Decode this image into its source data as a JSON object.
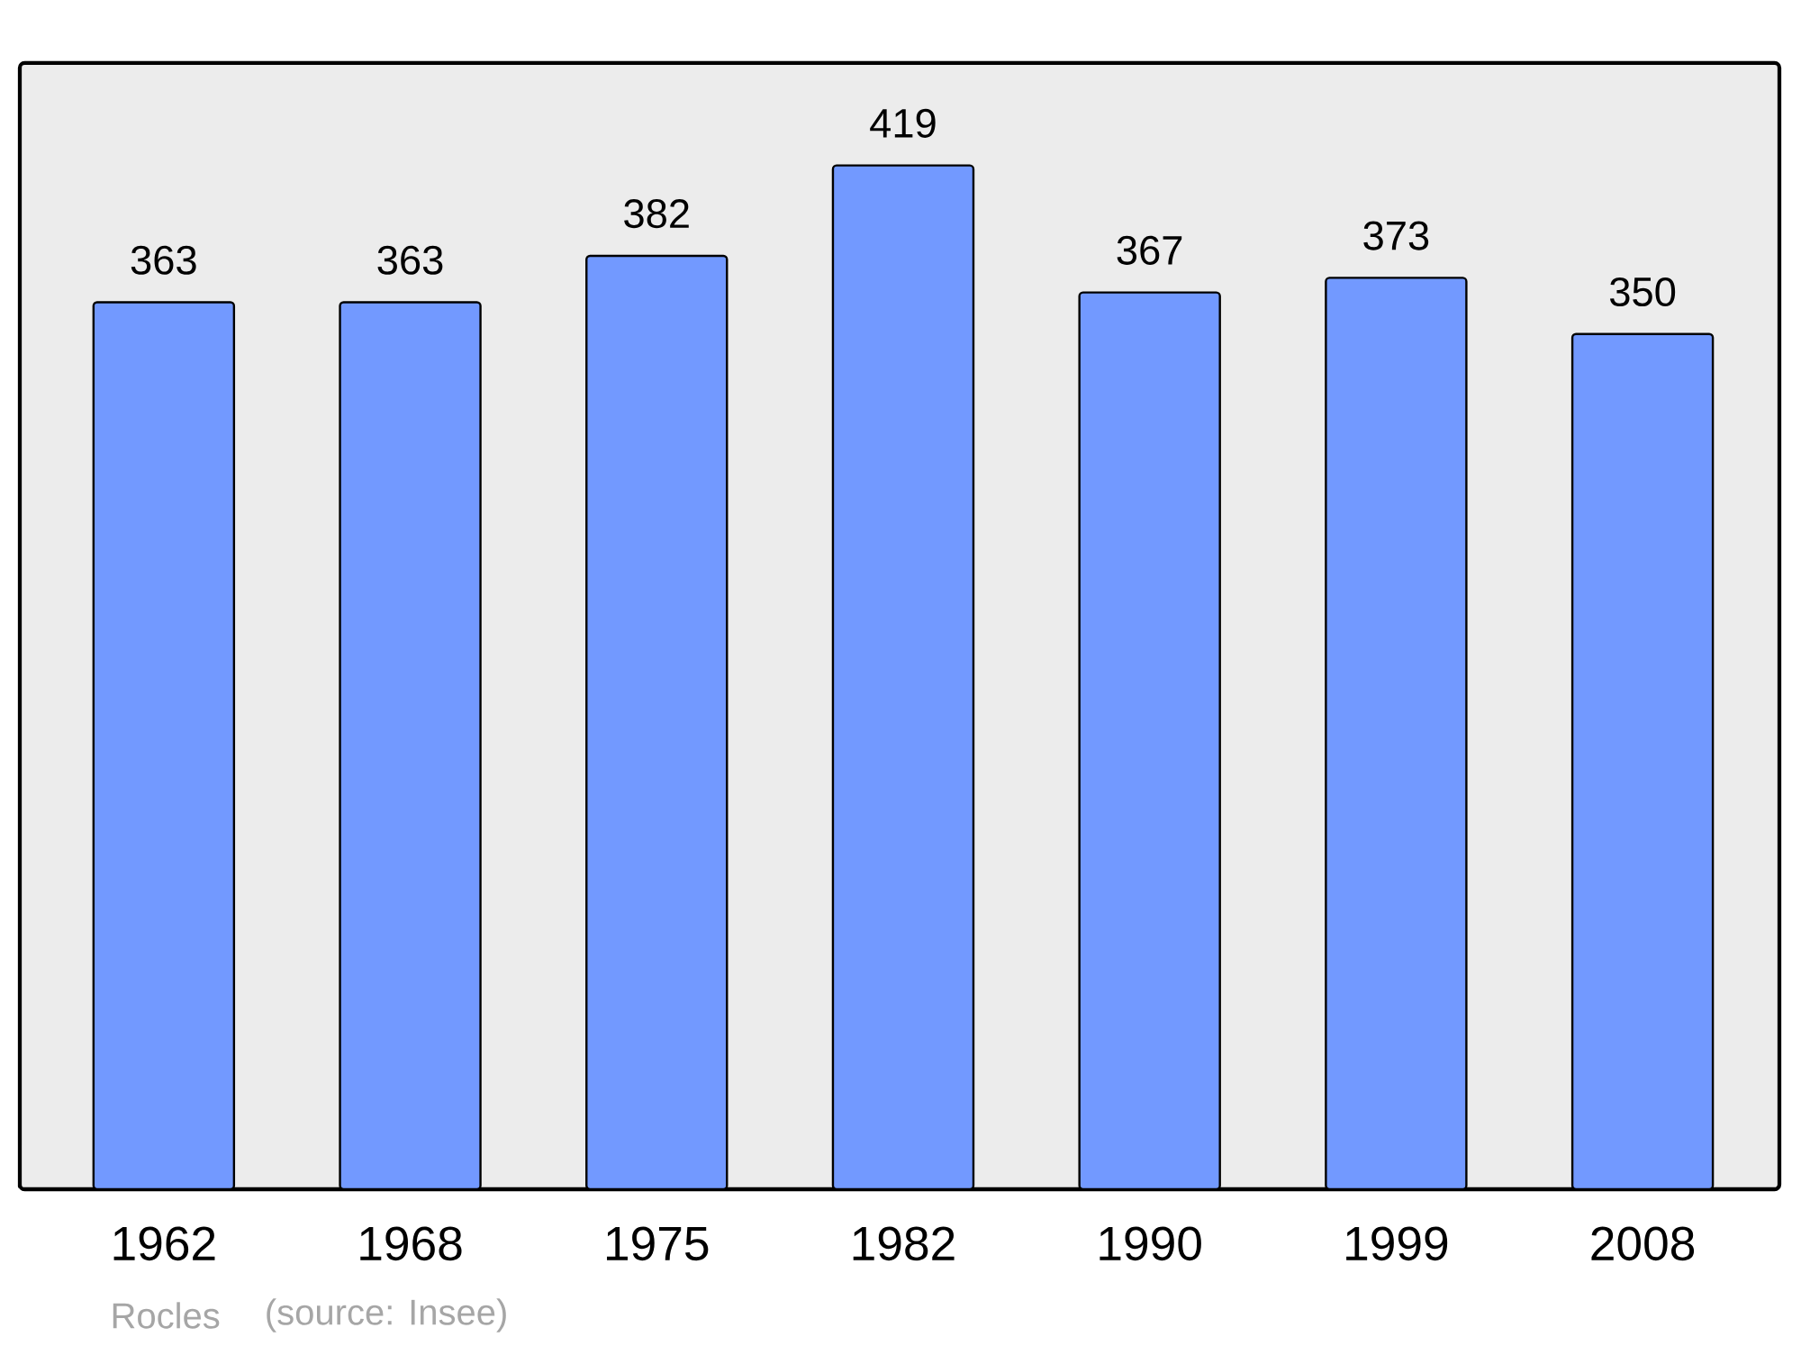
{
  "chart_data": {
    "type": "bar",
    "categories": [
      "1962",
      "1968",
      "1975",
      "1982",
      "1990",
      "1999",
      "2008"
    ],
    "values": [
      363,
      363,
      382,
      419,
      367,
      373,
      350
    ],
    "color": "#7299ff",
    "data_labels": true,
    "annotations": [
      "Rocles",
      "(source: Insee)"
    ]
  }
}
